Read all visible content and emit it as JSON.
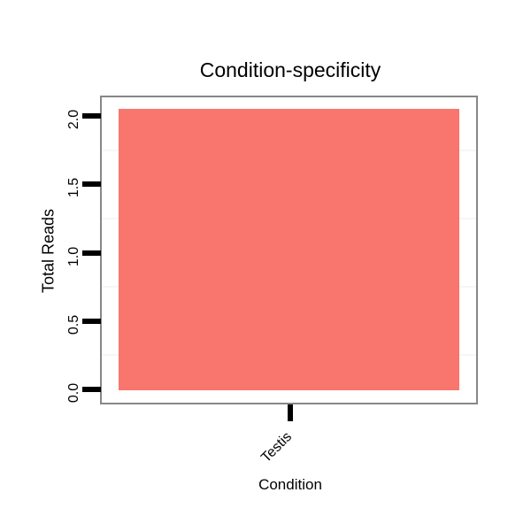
{
  "chart_data": {
    "type": "bar",
    "title": "Condition-specificity",
    "xlabel": "Condition",
    "ylabel": "Total Reads",
    "categories": [
      "Testis"
    ],
    "values": [
      2.05
    ],
    "yticks": [
      "0.0",
      "0.5",
      "1.0",
      "1.5",
      "2.0"
    ],
    "ytick_values": [
      0,
      0.5,
      1,
      1.5,
      2
    ],
    "ylim": [
      0,
      2.15
    ],
    "minor_gridlines": [
      0.25,
      0.75,
      1.25,
      1.75
    ],
    "x_tick_label_rotation_deg": 45,
    "grid": "minor-only",
    "legend": "none",
    "colors": {
      "bar_fill": "#f8766d",
      "panel_border": "#878787",
      "minor_grid": "#f6f6f6",
      "axis_text": "#000000",
      "background": "#ffffff"
    }
  }
}
